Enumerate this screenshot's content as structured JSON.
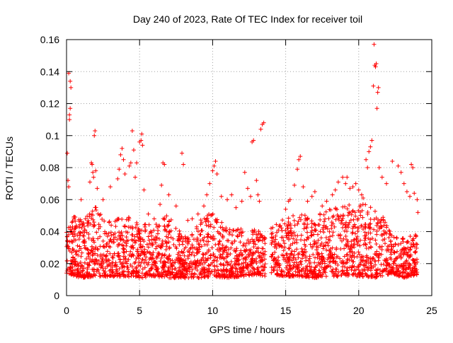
{
  "chart_data": {
    "type": "scatter",
    "title": "Day 240 of 2023, Rate Of TEC Index for receiver toil",
    "xlabel": "GPS time / hours",
    "ylabel": "ROTI / TECUs",
    "xlim": [
      0,
      25
    ],
    "ylim": [
      0,
      0.16
    ],
    "xticks": [
      0,
      5,
      10,
      15,
      20,
      25
    ],
    "yticks": [
      0,
      0.02,
      0.04,
      0.06,
      0.08,
      0.1,
      0.12,
      0.14,
      0.16
    ],
    "xtick_labels": [
      "0",
      "5",
      "10",
      "15",
      "20",
      "25"
    ],
    "ytick_labels": [
      "0",
      "0.02",
      "0.04",
      "0.06",
      "0.08",
      "0.1",
      "0.12",
      "0.14",
      "0.16"
    ],
    "grid": true,
    "grid_style": "dotted",
    "marker": "+",
    "marker_color": "#ff0000",
    "data_gap_hours": [
      13.6,
      14.0
    ],
    "series": [
      {
        "points": [
          [
            0.05,
            0.089
          ],
          [
            0.1,
            0.072
          ],
          [
            0.15,
            0.068
          ],
          [
            0.15,
            0.139
          ],
          [
            0.2,
            0.11
          ],
          [
            0.25,
            0.117
          ],
          [
            0.25,
            0.134
          ],
          [
            0.3,
            0.13
          ],
          [
            0.2,
            0.113
          ],
          [
            1.0,
            0.06
          ],
          [
            1.6,
            0.071
          ],
          [
            1.7,
            0.083
          ],
          [
            1.75,
            0.082
          ],
          [
            1.8,
            0.077
          ],
          [
            1.85,
            0.074
          ],
          [
            1.9,
            0.1
          ],
          [
            1.95,
            0.103
          ],
          [
            2.0,
            0.078
          ],
          [
            2.1,
            0.067
          ],
          [
            2.5,
            0.06
          ],
          [
            3.0,
            0.068
          ],
          [
            3.5,
            0.073
          ],
          [
            3.6,
            0.079
          ],
          [
            3.7,
            0.088
          ],
          [
            3.8,
            0.092
          ],
          [
            3.9,
            0.085
          ],
          [
            4.0,
            0.076
          ],
          [
            4.3,
            0.081
          ],
          [
            4.4,
            0.083
          ],
          [
            4.5,
            0.103
          ],
          [
            4.6,
            0.091
          ],
          [
            4.7,
            0.074
          ],
          [
            4.8,
            0.083
          ],
          [
            5.0,
            0.096
          ],
          [
            5.1,
            0.097
          ],
          [
            5.15,
            0.101
          ],
          [
            5.2,
            0.094
          ],
          [
            5.3,
            0.066
          ],
          [
            5.6,
            0.051
          ],
          [
            6.0,
            0.048
          ],
          [
            6.4,
            0.057
          ],
          [
            6.5,
            0.069
          ],
          [
            6.6,
            0.083
          ],
          [
            6.7,
            0.082
          ],
          [
            7.0,
            0.063
          ],
          [
            7.5,
            0.056
          ],
          [
            7.9,
            0.089
          ],
          [
            8.0,
            0.082
          ],
          [
            8.3,
            0.047
          ],
          [
            8.6,
            0.048
          ],
          [
            9.0,
            0.051
          ],
          [
            9.4,
            0.056
          ],
          [
            9.6,
            0.063
          ],
          [
            9.8,
            0.07
          ],
          [
            10.0,
            0.078
          ],
          [
            10.1,
            0.081
          ],
          [
            10.2,
            0.084
          ],
          [
            10.3,
            0.076
          ],
          [
            10.6,
            0.062
          ],
          [
            11.0,
            0.06
          ],
          [
            11.3,
            0.063
          ],
          [
            11.6,
            0.055
          ],
          [
            12.0,
            0.059
          ],
          [
            12.2,
            0.077
          ],
          [
            12.4,
            0.067
          ],
          [
            12.6,
            0.062
          ],
          [
            12.7,
            0.096
          ],
          [
            12.8,
            0.097
          ],
          [
            13.0,
            0.072
          ],
          [
            13.1,
            0.063
          ],
          [
            13.2,
            0.059
          ],
          [
            13.3,
            0.104
          ],
          [
            13.4,
            0.107
          ],
          [
            13.5,
            0.108
          ],
          [
            14.0,
            0.042
          ],
          [
            14.5,
            0.041
          ],
          [
            15.0,
            0.054
          ],
          [
            15.2,
            0.059
          ],
          [
            15.3,
            0.06
          ],
          [
            15.6,
            0.069
          ],
          [
            15.8,
            0.079
          ],
          [
            15.9,
            0.085
          ],
          [
            16.0,
            0.087
          ],
          [
            16.2,
            0.068
          ],
          [
            16.5,
            0.059
          ],
          [
            16.8,
            0.062
          ],
          [
            17.0,
            0.065
          ],
          [
            17.5,
            0.056
          ],
          [
            17.8,
            0.059
          ],
          [
            18.2,
            0.063
          ],
          [
            18.4,
            0.066
          ],
          [
            18.6,
            0.071
          ],
          [
            18.9,
            0.074
          ],
          [
            19.1,
            0.07
          ],
          [
            19.2,
            0.074
          ],
          [
            19.4,
            0.067
          ],
          [
            19.6,
            0.068
          ],
          [
            19.8,
            0.07
          ],
          [
            20.0,
            0.066
          ],
          [
            20.2,
            0.063
          ],
          [
            20.3,
            0.061
          ],
          [
            20.5,
            0.085
          ],
          [
            20.6,
            0.08
          ],
          [
            20.7,
            0.09
          ],
          [
            20.8,
            0.093
          ],
          [
            20.9,
            0.097
          ],
          [
            21.0,
            0.131
          ],
          [
            21.05,
            0.157
          ],
          [
            21.1,
            0.144
          ],
          [
            21.15,
            0.143
          ],
          [
            21.2,
            0.145
          ],
          [
            21.25,
            0.117
          ],
          [
            21.3,
            0.127
          ],
          [
            21.35,
            0.13
          ],
          [
            21.4,
            0.08
          ],
          [
            21.6,
            0.074
          ],
          [
            21.9,
            0.07
          ],
          [
            22.3,
            0.084
          ],
          [
            22.7,
            0.081
          ],
          [
            22.9,
            0.077
          ],
          [
            23.1,
            0.07
          ],
          [
            23.3,
            0.065
          ],
          [
            23.5,
            0.062
          ],
          [
            23.6,
            0.082
          ],
          [
            23.7,
            0.08
          ],
          [
            23.8,
            0.064
          ],
          [
            24.0,
            0.06
          ],
          [
            24.05,
            0.052
          ]
        ],
        "density_envelope": {
          "x": [
            0,
            1,
            2,
            3,
            4,
            5,
            6,
            7,
            8,
            9,
            10,
            11,
            12,
            13,
            13.6,
            14,
            15,
            16,
            17,
            18,
            19,
            20,
            21,
            22,
            22.3,
            23,
            24
          ],
          "y_min": [
            0.008,
            0.005,
            0.006,
            0.006,
            0.006,
            0.005,
            0.006,
            0.005,
            0.005,
            0.005,
            0.006,
            0.005,
            0.006,
            0.007,
            0.006,
            0.007,
            0.006,
            0.006,
            0.005,
            0.006,
            0.006,
            0.006,
            0.005,
            0.007,
            0.008,
            0.005,
            0.007
          ],
          "y_max": [
            0.045,
            0.042,
            0.05,
            0.04,
            0.045,
            0.04,
            0.038,
            0.046,
            0.03,
            0.04,
            0.048,
            0.036,
            0.036,
            0.035,
            0.034,
            0.04,
            0.042,
            0.048,
            0.044,
            0.048,
            0.05,
            0.052,
            0.05,
            0.04,
            0.032,
            0.03,
            0.034
          ]
        }
      }
    ]
  }
}
